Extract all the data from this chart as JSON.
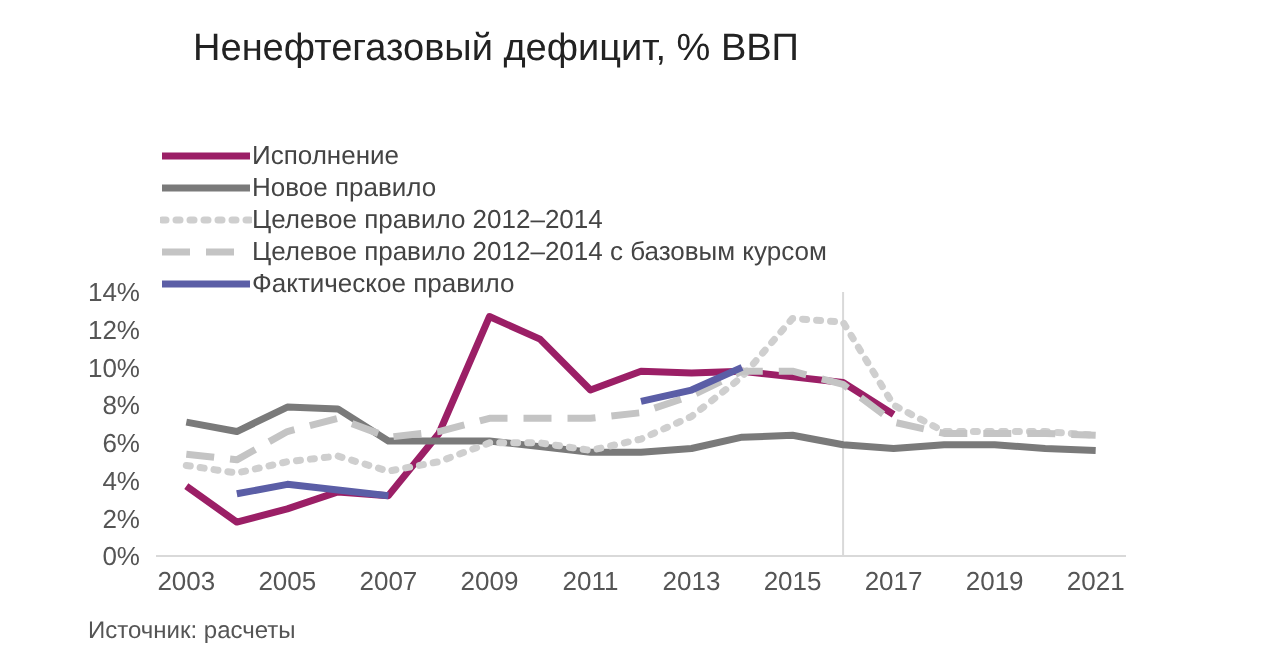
{
  "chart_data": {
    "type": "line",
    "title": "Ненефтегазовый дефицит, % ВВП",
    "annotations": [
      "Источник: расчеты"
    ],
    "x": [
      2003,
      2004,
      2005,
      2006,
      2007,
      2008,
      2009,
      2010,
      2011,
      2012,
      2013,
      2014,
      2015,
      2016,
      2017,
      2018,
      2019,
      2020,
      2021
    ],
    "series": [
      {
        "name": "Исполнение",
        "color": "#9b1f66",
        "line_style": "solid",
        "values": [
          3.7,
          1.8,
          2.5,
          3.4,
          3.2,
          6.5,
          12.7,
          11.5,
          8.8,
          9.8,
          9.7,
          9.8,
          9.5,
          9.2,
          7.5,
          null,
          null,
          null,
          null
        ]
      },
      {
        "name": "Новое правило",
        "color": "#7a7a7a",
        "line_style": "solid",
        "values": [
          7.1,
          6.6,
          7.9,
          7.8,
          6.1,
          6.1,
          6.1,
          5.8,
          5.5,
          5.5,
          5.7,
          6.3,
          6.4,
          5.9,
          5.7,
          5.9,
          5.9,
          5.7,
          5.6
        ]
      },
      {
        "name": "Целевое правило 2012–2014",
        "color": "#cfcfcf",
        "line_style": "dotted",
        "values": [
          4.8,
          4.4,
          5.0,
          5.3,
          4.5,
          5.0,
          6.0,
          6.0,
          5.6,
          6.2,
          7.4,
          9.5,
          12.6,
          12.4,
          8.0,
          6.6,
          6.6,
          6.6,
          6.4
        ]
      },
      {
        "name": "Целевое правило 2012–2014 с базовым курсом",
        "color": "#c4c4c4",
        "line_style": "dashed",
        "values": [
          5.4,
          5.1,
          6.6,
          7.3,
          6.3,
          6.6,
          7.3,
          7.3,
          7.3,
          7.6,
          8.5,
          9.8,
          9.8,
          9.1,
          7.1,
          6.5,
          6.5,
          6.5,
          6.4
        ]
      },
      {
        "name": "Фактическое правило",
        "color": "#5b5ea6",
        "line_style": "solid",
        "values": [
          null,
          3.3,
          3.8,
          3.5,
          3.2,
          null,
          null,
          null,
          null,
          8.2,
          8.8,
          10.0,
          null,
          null,
          null,
          null,
          null,
          null,
          null
        ]
      }
    ],
    "xlim": [
      2002.4,
      2021.6
    ],
    "xticks": [
      2003,
      2005,
      2007,
      2009,
      2011,
      2013,
      2015,
      2017,
      2019,
      2021
    ],
    "ylim": [
      0,
      14
    ],
    "yticks": [
      {
        "value": 0,
        "label": "0%"
      },
      {
        "value": 2,
        "label": "2%"
      },
      {
        "value": 4,
        "label": "4%"
      },
      {
        "value": 6,
        "label": "6%"
      },
      {
        "value": 8,
        "label": "8%"
      },
      {
        "value": 10,
        "label": "10%"
      },
      {
        "value": 12,
        "label": "12%"
      },
      {
        "value": 14,
        "label": "14%"
      }
    ],
    "ref_lines": [
      {
        "axis": "x",
        "value": 2016,
        "color": "#d9d9d9"
      }
    ],
    "legend": "top left",
    "marker": "none",
    "grid": false
  }
}
